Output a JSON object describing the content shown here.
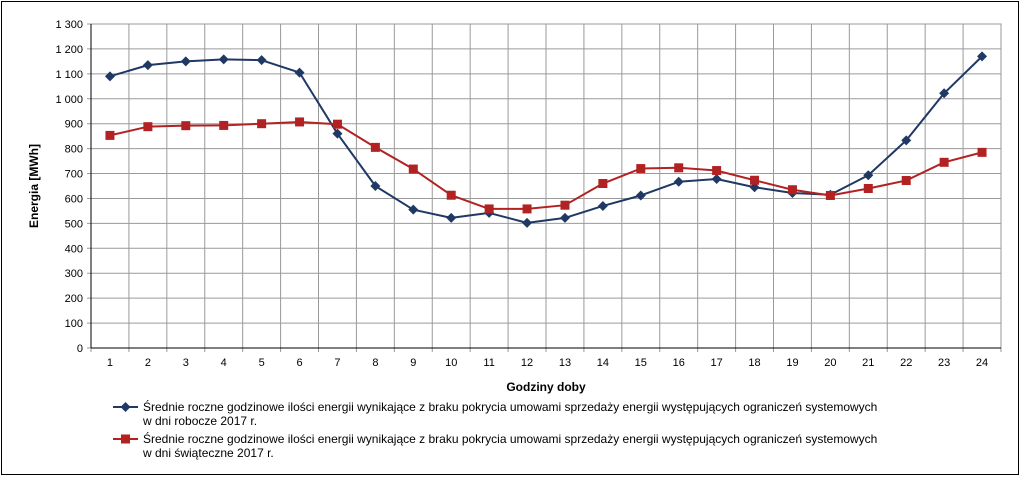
{
  "chart_data": {
    "type": "line",
    "xlabel": "Godziny doby",
    "ylabel": "Energia  [MWh]",
    "ylim": [
      0,
      1300
    ],
    "y_ticks": [
      0,
      100,
      200,
      300,
      400,
      500,
      600,
      700,
      800,
      900,
      1000,
      1100,
      1200,
      1300
    ],
    "y_tick_labels": [
      "0",
      "100",
      "200",
      "300",
      "400",
      "500",
      "600",
      "700",
      "800",
      "900",
      "1 000",
      "1 100",
      "1 200",
      "1 300"
    ],
    "categories": [
      "1",
      "2",
      "3",
      "4",
      "5",
      "6",
      "7",
      "8",
      "9",
      "10",
      "11",
      "12",
      "13",
      "14",
      "15",
      "16",
      "17",
      "18",
      "19",
      "20",
      "21",
      "22",
      "23",
      "24"
    ],
    "grid": true,
    "legend_position": "bottom",
    "series": [
      {
        "name_line1": "Średnie roczne godzinowe ilości energii wynikające z braku pokrycia umowami sprzedaży energii występujących ograniczeń systemowych",
        "name_line2": "w dni robocze 2017 r.",
        "color": "#1F3864",
        "marker": "diamond",
        "values": [
          1090,
          1135,
          1150,
          1158,
          1155,
          1105,
          860,
          650,
          555,
          522,
          542,
          502,
          522,
          570,
          612,
          667,
          678,
          645,
          622,
          615,
          693,
          833,
          1022,
          1170
        ]
      },
      {
        "name_line1": "Średnie roczne godzinowe ilości energii wynikające z braku pokrycia umowami sprzedaży energii występujących ograniczeń systemowych",
        "name_line2": "w dni świąteczne 2017 r.",
        "color": "#B22222",
        "marker": "square",
        "values": [
          853,
          888,
          892,
          893,
          900,
          907,
          898,
          805,
          718,
          613,
          558,
          558,
          573,
          660,
          720,
          723,
          712,
          673,
          635,
          612,
          640,
          672,
          745,
          785
        ]
      }
    ]
  }
}
